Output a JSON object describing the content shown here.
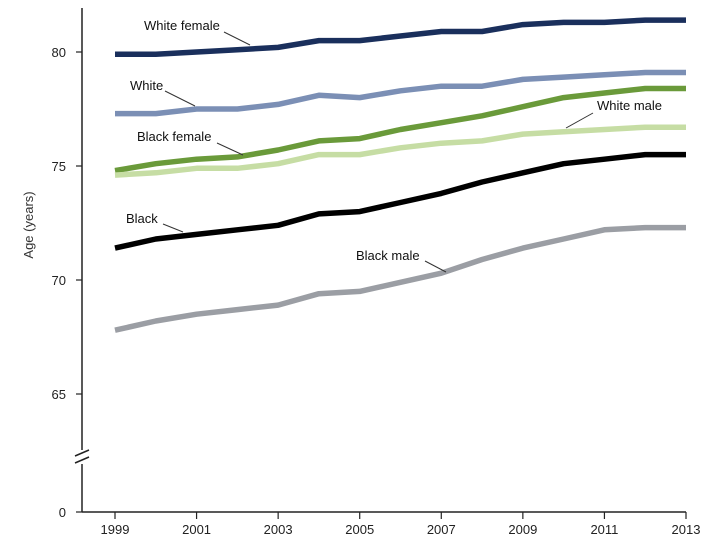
{
  "chart_data": {
    "type": "line",
    "title": "",
    "xlabel": "",
    "ylabel": "Age (years)",
    "x": [
      1999,
      2000,
      2001,
      2002,
      2003,
      2004,
      2005,
      2006,
      2007,
      2008,
      2009,
      2010,
      2011,
      2012,
      2013
    ],
    "x_tick_labels": [
      "1999",
      "2001",
      "2003",
      "2005",
      "2007",
      "2009",
      "2011",
      "2013"
    ],
    "y_tick_labels": [
      "0",
      "65",
      "70",
      "75",
      "80"
    ],
    "ylim": [
      65,
      82
    ],
    "y_axis_break": true,
    "grid": false,
    "series": [
      {
        "name": "White female",
        "color": "#1a2f5c",
        "values": [
          79.9,
          79.9,
          80.0,
          80.1,
          80.2,
          80.5,
          80.5,
          80.7,
          80.9,
          80.9,
          81.2,
          81.3,
          81.3,
          81.4,
          81.4
        ]
      },
      {
        "name": "White",
        "color": "#7b8fb5",
        "values": [
          77.3,
          77.3,
          77.5,
          77.5,
          77.7,
          78.1,
          78.0,
          78.3,
          78.5,
          78.5,
          78.8,
          78.9,
          79.0,
          79.1,
          79.1
        ]
      },
      {
        "name": "Black female",
        "color": "#6a9a3a",
        "values": [
          74.8,
          75.1,
          75.3,
          75.4,
          75.7,
          76.1,
          76.2,
          76.6,
          76.9,
          77.2,
          77.6,
          78.0,
          78.2,
          78.4,
          78.4
        ]
      },
      {
        "name": "White male",
        "color": "#c6dda4",
        "values": [
          74.6,
          74.7,
          74.9,
          74.9,
          75.1,
          75.5,
          75.5,
          75.8,
          76.0,
          76.1,
          76.4,
          76.5,
          76.6,
          76.7,
          76.7
        ]
      },
      {
        "name": "Black",
        "color": "#000000",
        "values": [
          71.4,
          71.8,
          72.0,
          72.2,
          72.4,
          72.9,
          73.0,
          73.4,
          73.8,
          74.3,
          74.7,
          75.1,
          75.3,
          75.5,
          75.5
        ]
      },
      {
        "name": "Black male",
        "color": "#9b9ea4",
        "values": [
          67.8,
          68.2,
          68.5,
          68.7,
          68.9,
          69.4,
          69.5,
          69.9,
          70.3,
          70.9,
          71.4,
          71.8,
          72.2,
          72.3,
          72.3
        ]
      }
    ],
    "labels": [
      {
        "series": 0,
        "text": "White female"
      },
      {
        "series": 1,
        "text": "White"
      },
      {
        "series": 2,
        "text": "Black female"
      },
      {
        "series": 3,
        "text": "White male"
      },
      {
        "series": 4,
        "text": "Black"
      },
      {
        "series": 5,
        "text": "Black male"
      }
    ]
  }
}
